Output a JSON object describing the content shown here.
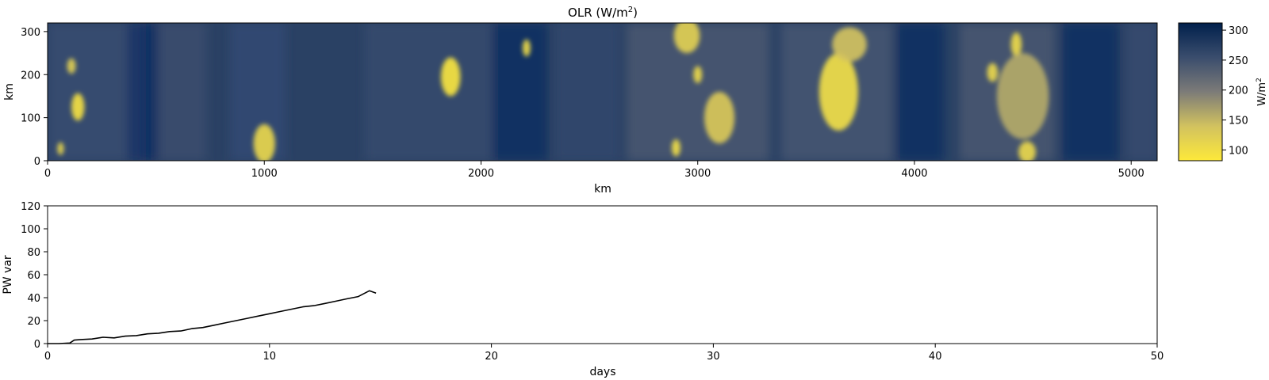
{
  "chart_data": [
    {
      "type": "heatmap",
      "title": "OLR (W/m",
      "title_superscript": "2",
      "title_suffix": ")",
      "xlabel": "km",
      "ylabel": "km",
      "xlim": [
        0,
        5120
      ],
      "ylim": [
        0,
        320
      ],
      "xticks": [
        0,
        1000,
        2000,
        3000,
        4000,
        5000
      ],
      "yticks": [
        0,
        100,
        200,
        300
      ],
      "colormap": "cividis_r",
      "colors": {
        "high": "#00204c",
        "mid": "#7c7b78",
        "low": "#fde93a"
      },
      "colorbar": {
        "label": "W/m",
        "label_superscript": "2",
        "range": [
          82,
          312
        ],
        "ticks": [
          100,
          150,
          200,
          250,
          300
        ]
      },
      "background_olr": 270,
      "convective_cells": [
        {
          "x": 140,
          "y": 125,
          "rx": 30,
          "ry": 32,
          "olr": 95
        },
        {
          "x": 110,
          "y": 220,
          "rx": 20,
          "ry": 18,
          "olr": 120
        },
        {
          "x": 60,
          "y": 28,
          "rx": 15,
          "ry": 15,
          "olr": 110
        },
        {
          "x": 1000,
          "y": 40,
          "rx": 50,
          "ry": 45,
          "olr": 110
        },
        {
          "x": 1860,
          "y": 195,
          "rx": 45,
          "ry": 45,
          "olr": 90
        },
        {
          "x": 2210,
          "y": 262,
          "rx": 18,
          "ry": 20,
          "olr": 100
        },
        {
          "x": 2900,
          "y": 30,
          "rx": 20,
          "ry": 20,
          "olr": 100
        },
        {
          "x": 2950,
          "y": 290,
          "rx": 60,
          "ry": 40,
          "olr": 120
        },
        {
          "x": 3000,
          "y": 200,
          "rx": 20,
          "ry": 20,
          "olr": 105
        },
        {
          "x": 3100,
          "y": 100,
          "rx": 70,
          "ry": 60,
          "olr": 130
        },
        {
          "x": 3650,
          "y": 160,
          "rx": 90,
          "ry": 90,
          "olr": 100
        },
        {
          "x": 3700,
          "y": 270,
          "rx": 80,
          "ry": 40,
          "olr": 140
        },
        {
          "x": 4360,
          "y": 205,
          "rx": 25,
          "ry": 22,
          "olr": 110
        },
        {
          "x": 4470,
          "y": 270,
          "rx": 25,
          "ry": 28,
          "olr": 105
        },
        {
          "x": 4500,
          "y": 150,
          "rx": 120,
          "ry": 100,
          "olr": 160
        },
        {
          "x": 4520,
          "y": 20,
          "rx": 40,
          "ry": 25,
          "olr": 110
        }
      ]
    },
    {
      "type": "line",
      "title": "",
      "xlabel": "days",
      "ylabel": "PW var",
      "xlim": [
        0,
        50
      ],
      "ylim": [
        0,
        120
      ],
      "xticks": [
        0,
        10,
        20,
        30,
        40,
        50
      ],
      "yticks": [
        0,
        20,
        40,
        60,
        80,
        100,
        120
      ],
      "line_color": "#000000",
      "series": [
        {
          "x": [
            0,
            0.5,
            1.0,
            1.2,
            1.5,
            2.0,
            2.5,
            3.0,
            3.5,
            4.0,
            4.5,
            5.0,
            5.5,
            6.0,
            6.5,
            7.0,
            7.5,
            8.0,
            8.5,
            9.0,
            9.5,
            10.0,
            10.5,
            11.0,
            11.5,
            12.0,
            12.5,
            13.0,
            13.5,
            14.0,
            14.5,
            14.8
          ],
          "y": [
            0,
            0,
            0.5,
            3,
            3.5,
            4,
            5.5,
            5,
            6.5,
            7,
            8.5,
            9,
            10.5,
            11,
            13,
            14,
            16,
            18,
            20,
            22,
            24,
            26,
            28,
            30,
            32,
            33,
            35,
            37,
            39,
            41,
            46,
            44
          ]
        }
      ]
    }
  ]
}
